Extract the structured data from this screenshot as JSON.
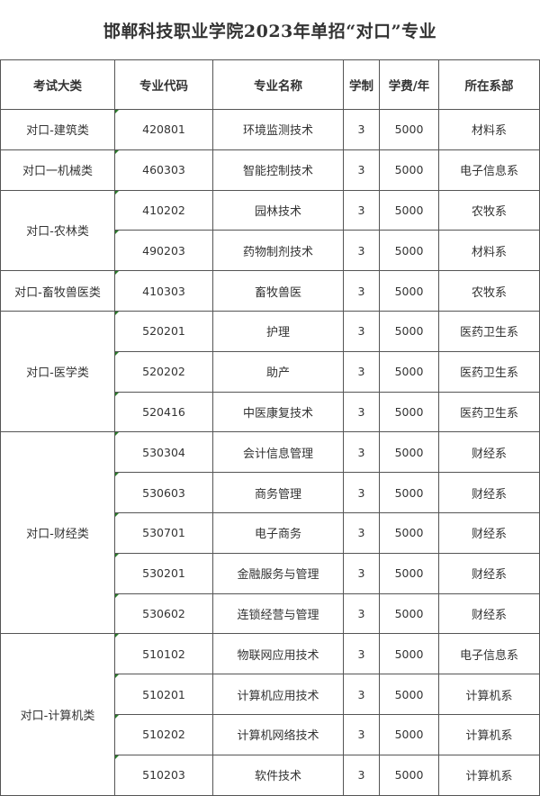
{
  "title": "邯郸科技职业学院2023年单招“对口”专业",
  "headers": [
    "考试大类",
    "专业代码",
    "专业名称",
    "学制",
    "学费/年",
    "所在系部"
  ],
  "groups": [
    {
      "category": "对口-建筑类",
      "rows": [
        {
          "code": "420801",
          "name": "环境监测技术",
          "years": "3",
          "fee": "5000",
          "dept": "材料系"
        }
      ]
    },
    {
      "category": "对口一机械类",
      "rows": [
        {
          "code": "460303",
          "name": "智能控制技术",
          "years": "3",
          "fee": "5000",
          "dept": "电子信息系"
        }
      ]
    },
    {
      "category": "对口-农林类",
      "rows": [
        {
          "code": "410202",
          "name": "园林技术",
          "years": "3",
          "fee": "5000",
          "dept": "农牧系"
        },
        {
          "code": "490203",
          "name": "药物制剂技术",
          "years": "3",
          "fee": "5000",
          "dept": "材料系"
        }
      ]
    },
    {
      "category": "对口-畜牧兽医类",
      "rows": [
        {
          "code": "410303",
          "name": "畜牧兽医",
          "years": "3",
          "fee": "5000",
          "dept": "农牧系"
        }
      ]
    },
    {
      "category": "对口-医学类",
      "rows": [
        {
          "code": "520201",
          "name": "护理",
          "years": "3",
          "fee": "5000",
          "dept": "医药卫生系"
        },
        {
          "code": "520202",
          "name": "助产",
          "years": "3",
          "fee": "5000",
          "dept": "医药卫生系"
        },
        {
          "code": "520416",
          "name": "中医康复技术",
          "years": "3",
          "fee": "5000",
          "dept": "医药卫生系"
        }
      ]
    },
    {
      "category": "对口-财经类",
      "rows": [
        {
          "code": "530304",
          "name": "会计信息管理",
          "years": "3",
          "fee": "5000",
          "dept": "财经系"
        },
        {
          "code": "530603",
          "name": "商务管理",
          "years": "3",
          "fee": "5000",
          "dept": "财经系"
        },
        {
          "code": "530701",
          "name": "电子商务",
          "years": "3",
          "fee": "5000",
          "dept": "财经系"
        },
        {
          "code": "530201",
          "name": "金融服务与管理",
          "years": "3",
          "fee": "5000",
          "dept": "财经系"
        },
        {
          "code": "530602",
          "name": "连锁经营与管理",
          "years": "3",
          "fee": "5000",
          "dept": "财经系"
        }
      ]
    },
    {
      "category": "对口-计算机类",
      "rows": [
        {
          "code": "510102",
          "name": "物联网应用技术",
          "years": "3",
          "fee": "5000",
          "dept": "电子信息系"
        },
        {
          "code": "510201",
          "name": "计算机应用技术",
          "years": "3",
          "fee": "5000",
          "dept": "计算机系"
        },
        {
          "code": "510202",
          "name": "计算机网络技术",
          "years": "3",
          "fee": "5000",
          "dept": "计算机系"
        },
        {
          "code": "510203",
          "name": "软件技术",
          "years": "3",
          "fee": "5000",
          "dept": "计算机系"
        }
      ]
    }
  ]
}
